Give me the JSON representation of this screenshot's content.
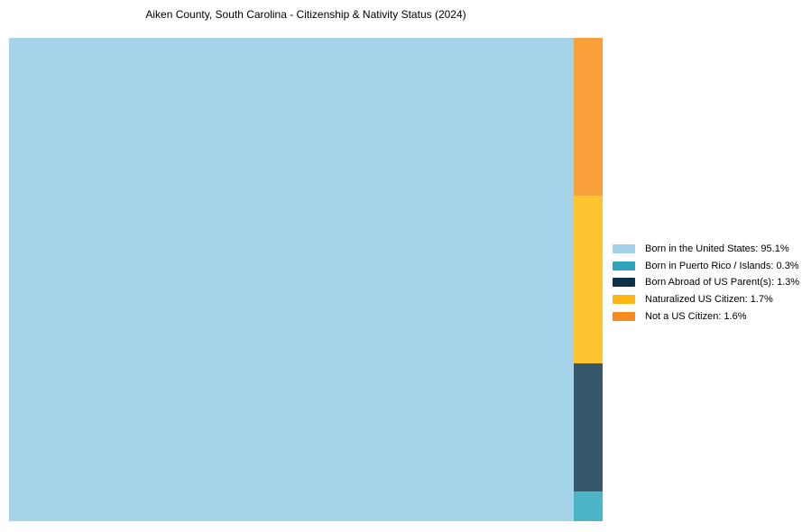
{
  "title": "Aiken County, South Carolina - Citizenship & Nativity Status (2024)",
  "chart_data": {
    "type": "treemap",
    "title": "Aiken County, South Carolina - Citizenship & Nativity Status (2024)",
    "categories": [
      "Born in the United States",
      "Born in Puerto Rico / Islands",
      "Born Abroad of US Parent(s)",
      "Naturalized US Citizen",
      "Not a US Citizen"
    ],
    "values": [
      95.1,
      0.3,
      1.3,
      1.7,
      1.6
    ],
    "unit": "%",
    "legend_position": "right",
    "layout_hint": "single large tile on left for majority category; remaining categories stacked top-to-bottom in a narrow right column in order: Not a US Citizen, Naturalized US Citizen, Born Abroad of US Parent(s), Born in Puerto Rico / Islands"
  },
  "treemap": {
    "main": {
      "name": "Born in the United States",
      "value": 95.1,
      "fill": "#a4d3ea"
    },
    "column": [
      {
        "name": "Not a US Citizen",
        "value": 1.6,
        "fill": "#f9a03a"
      },
      {
        "name": "Naturalized US Citizen",
        "value": 1.7,
        "fill": "#fdc52f"
      },
      {
        "name": "Born Abroad of US Parent(s)",
        "value": 1.3,
        "fill": "#35596b"
      },
      {
        "name": "Born in Puerto Rico / Islands",
        "value": 0.3,
        "fill": "#4db3c6"
      }
    ]
  },
  "legend": {
    "items": [
      {
        "label": "Born in the United States: 95.1%",
        "swatch": "#a3d3ea"
      },
      {
        "label": "Born in Puerto Rico / Islands: 0.3%",
        "swatch": "#2ea3be"
      },
      {
        "label": "Born Abroad of US Parent(s): 1.3%",
        "swatch": "#0d3149"
      },
      {
        "label": "Naturalized US Citizen: 1.7%",
        "swatch": "#fdb813"
      },
      {
        "label": "Not a US Citizen: 1.6%",
        "swatch": "#f68b1f"
      }
    ]
  }
}
